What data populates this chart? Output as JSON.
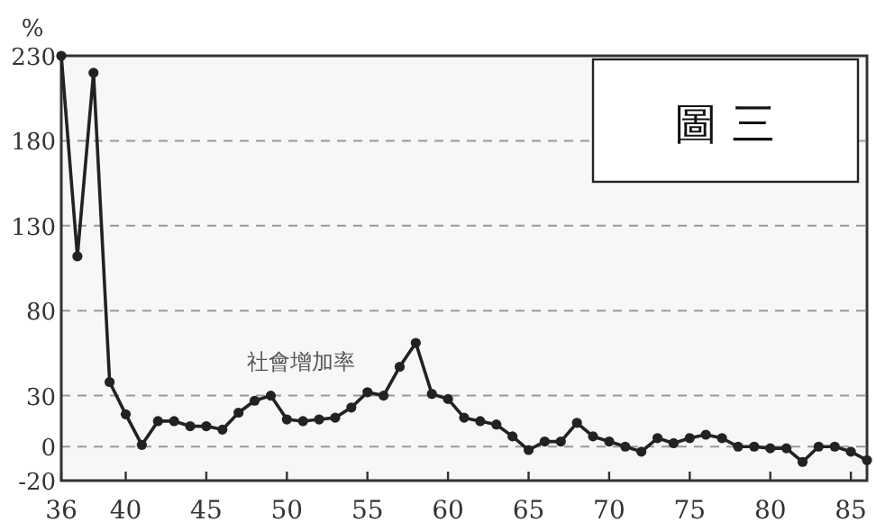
{
  "chart_data": {
    "type": "line",
    "title": "圖 三",
    "ylabel": "%",
    "x": [
      36,
      37,
      38,
      39,
      40,
      41,
      42,
      43,
      44,
      45,
      46,
      47,
      48,
      49,
      50,
      51,
      52,
      53,
      54,
      55,
      56,
      57,
      58,
      59,
      60,
      61,
      62,
      63,
      64,
      65,
      66,
      67,
      68,
      69,
      70,
      71,
      72,
      73,
      74,
      75,
      76,
      77,
      78,
      79,
      80,
      81,
      82,
      83,
      84,
      85,
      86
    ],
    "series": [
      {
        "name": "社會增加率",
        "color": "#222222",
        "values": [
          230,
          112,
          220,
          38,
          19,
          1,
          15,
          15,
          12,
          12,
          10,
          20,
          27,
          30,
          16,
          15,
          16,
          17,
          23,
          32,
          30,
          47,
          61,
          31,
          28,
          17,
          15,
          13,
          6,
          -2,
          3,
          3,
          14,
          6,
          3,
          0,
          -3,
          5,
          2,
          5,
          7,
          5,
          0,
          0,
          -1,
          -1,
          -9,
          0,
          0,
          -3,
          -8
        ]
      }
    ],
    "xlim": [
      36,
      86
    ],
    "ylim": [
      -20,
      230
    ],
    "xticks": [
      36,
      40,
      45,
      50,
      55,
      60,
      65,
      70,
      75,
      80,
      85
    ],
    "yticks": [
      -20,
      0,
      30,
      80,
      130,
      180,
      230
    ],
    "grid": "y",
    "marker": "circle",
    "line_style": "solid"
  }
}
